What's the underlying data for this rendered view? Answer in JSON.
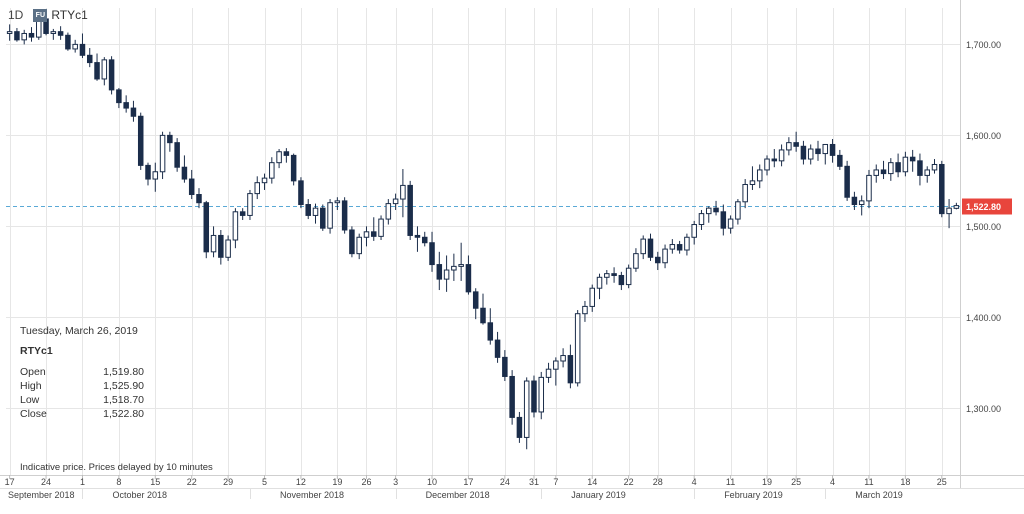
{
  "toolbar": {
    "period": "1D",
    "symbol_icon": "FU",
    "symbol": "RTYc1"
  },
  "info": {
    "date": "Tuesday, March 26, 2019",
    "symbol": "RTYc1",
    "rows": [
      {
        "label": "Open",
        "value": "1,519.80"
      },
      {
        "label": "High",
        "value": "1,525.90"
      },
      {
        "label": "Low",
        "value": "1,518.70"
      },
      {
        "label": "Close",
        "value": "1,522.80"
      }
    ]
  },
  "note": "Indicative price. Prices delayed by 10 minutes",
  "colors": {
    "down": "#1b2d4a",
    "up": "#ffffff",
    "up_border": "#1b2d4a",
    "last_price": "#e8453c",
    "price_line": "#5aa9d6",
    "grid": "#e6e6e6"
  },
  "chart_data": {
    "type": "candlestick",
    "ylim": [
      1230,
      1740
    ],
    "y_ticks": [
      {
        "value": 1700,
        "label": "1,700.00"
      },
      {
        "value": 1600,
        "label": "1,600.00"
      },
      {
        "value": 1500,
        "label": "1,500.00"
      },
      {
        "value": 1400,
        "label": "1,400.00"
      },
      {
        "value": 1300,
        "label": "1,300.00"
      }
    ],
    "last_price": {
      "value": 1522.8,
      "label": "1,522.80"
    },
    "x_day_ticks": [
      {
        "label": "17",
        "index": 0
      },
      {
        "label": "24",
        "index": 5
      },
      {
        "label": "1",
        "index": 10
      },
      {
        "label": "8",
        "index": 15
      },
      {
        "label": "15",
        "index": 20
      },
      {
        "label": "22",
        "index": 25
      },
      {
        "label": "29",
        "index": 30
      },
      {
        "label": "5",
        "index": 35
      },
      {
        "label": "12",
        "index": 40
      },
      {
        "label": "19",
        "index": 45
      },
      {
        "label": "26",
        "index": 49
      },
      {
        "label": "3",
        "index": 53
      },
      {
        "label": "10",
        "index": 58
      },
      {
        "label": "17",
        "index": 63
      },
      {
        "label": "24",
        "index": 68
      },
      {
        "label": "31",
        "index": 72
      },
      {
        "label": "7",
        "index": 75
      },
      {
        "label": "14",
        "index": 80
      },
      {
        "label": "22",
        "index": 85
      },
      {
        "label": "28",
        "index": 89
      },
      {
        "label": "4",
        "index": 94
      },
      {
        "label": "11",
        "index": 99
      },
      {
        "label": "19",
        "index": 104
      },
      {
        "label": "25",
        "index": 108
      },
      {
        "label": "4",
        "index": 113
      },
      {
        "label": "11",
        "index": 118
      },
      {
        "label": "18",
        "index": 123
      },
      {
        "label": "25",
        "index": 128
      }
    ],
    "x_month_ticks": [
      {
        "label": "September 2018",
        "index": 0
      },
      {
        "label": "October 2018",
        "index": 10
      },
      {
        "label": "November 2018",
        "index": 33
      },
      {
        "label": "December 2018",
        "index": 53
      },
      {
        "label": "January 2019",
        "index": 73
      },
      {
        "label": "February 2019",
        "index": 94
      },
      {
        "label": "March 2019",
        "index": 112
      }
    ],
    "candles": [
      [
        1712,
        1722,
        1704,
        1714
      ],
      [
        1714,
        1718,
        1703,
        1705
      ],
      [
        1705,
        1716,
        1700,
        1712
      ],
      [
        1712,
        1719,
        1703,
        1708
      ],
      [
        1708,
        1730,
        1705,
        1728
      ],
      [
        1728,
        1731,
        1710,
        1712
      ],
      [
        1712,
        1717,
        1705,
        1714
      ],
      [
        1714,
        1720,
        1705,
        1710
      ],
      [
        1710,
        1713,
        1693,
        1695
      ],
      [
        1695,
        1705,
        1691,
        1700
      ],
      [
        1700,
        1712,
        1685,
        1688
      ],
      [
        1688,
        1696,
        1675,
        1680
      ],
      [
        1680,
        1690,
        1660,
        1662
      ],
      [
        1662,
        1686,
        1655,
        1683
      ],
      [
        1683,
        1687,
        1645,
        1650
      ],
      [
        1650,
        1652,
        1630,
        1636
      ],
      [
        1636,
        1644,
        1625,
        1630
      ],
      [
        1630,
        1638,
        1615,
        1621
      ],
      [
        1621,
        1625,
        1562,
        1567
      ],
      [
        1567,
        1570,
        1545,
        1552
      ],
      [
        1552,
        1570,
        1538,
        1560
      ],
      [
        1560,
        1604,
        1552,
        1600
      ],
      [
        1600,
        1604,
        1582,
        1592
      ],
      [
        1592,
        1597,
        1560,
        1565
      ],
      [
        1565,
        1578,
        1548,
        1552
      ],
      [
        1552,
        1562,
        1530,
        1535
      ],
      [
        1535,
        1542,
        1520,
        1526
      ],
      [
        1526,
        1528,
        1465,
        1472
      ],
      [
        1472,
        1500,
        1466,
        1490
      ],
      [
        1490,
        1496,
        1458,
        1466
      ],
      [
        1466,
        1490,
        1462,
        1485
      ],
      [
        1485,
        1520,
        1476,
        1516
      ],
      [
        1516,
        1520,
        1507,
        1512
      ],
      [
        1512,
        1540,
        1507,
        1536
      ],
      [
        1536,
        1555,
        1530,
        1548
      ],
      [
        1548,
        1558,
        1540,
        1553
      ],
      [
        1553,
        1576,
        1547,
        1570
      ],
      [
        1570,
        1585,
        1564,
        1582
      ],
      [
        1582,
        1586,
        1570,
        1578
      ],
      [
        1578,
        1580,
        1545,
        1550
      ],
      [
        1550,
        1554,
        1520,
        1524
      ],
      [
        1524,
        1530,
        1508,
        1512
      ],
      [
        1512,
        1525,
        1503,
        1520
      ],
      [
        1520,
        1524,
        1495,
        1498
      ],
      [
        1498,
        1530,
        1492,
        1526
      ],
      [
        1526,
        1532,
        1518,
        1528
      ],
      [
        1528,
        1532,
        1492,
        1496
      ],
      [
        1496,
        1500,
        1466,
        1470
      ],
      [
        1470,
        1492,
        1464,
        1488
      ],
      [
        1488,
        1500,
        1478,
        1494
      ],
      [
        1494,
        1510,
        1484,
        1489
      ],
      [
        1489,
        1512,
        1485,
        1508
      ],
      [
        1508,
        1530,
        1502,
        1525
      ],
      [
        1525,
        1536,
        1518,
        1530
      ],
      [
        1530,
        1563,
        1510,
        1545
      ],
      [
        1545,
        1550,
        1485,
        1490
      ],
      [
        1490,
        1500,
        1472,
        1488
      ],
      [
        1488,
        1494,
        1478,
        1482
      ],
      [
        1482,
        1494,
        1450,
        1458
      ],
      [
        1458,
        1472,
        1430,
        1442
      ],
      [
        1442,
        1468,
        1428,
        1452
      ],
      [
        1452,
        1470,
        1440,
        1456
      ],
      [
        1456,
        1482,
        1440,
        1458
      ],
      [
        1458,
        1468,
        1425,
        1428
      ],
      [
        1428,
        1432,
        1398,
        1410
      ],
      [
        1410,
        1426,
        1392,
        1394
      ],
      [
        1394,
        1410,
        1370,
        1375
      ],
      [
        1375,
        1384,
        1350,
        1356
      ],
      [
        1356,
        1364,
        1330,
        1335
      ],
      [
        1335,
        1342,
        1282,
        1290
      ],
      [
        1290,
        1296,
        1262,
        1268
      ],
      [
        1268,
        1334,
        1255,
        1330
      ],
      [
        1330,
        1336,
        1290,
        1296
      ],
      [
        1296,
        1340,
        1288,
        1334
      ],
      [
        1334,
        1350,
        1328,
        1343
      ],
      [
        1343,
        1356,
        1325,
        1352
      ],
      [
        1352,
        1366,
        1345,
        1358
      ],
      [
        1358,
        1370,
        1322,
        1328
      ],
      [
        1328,
        1408,
        1324,
        1404
      ],
      [
        1404,
        1418,
        1395,
        1412
      ],
      [
        1412,
        1436,
        1406,
        1432
      ],
      [
        1432,
        1448,
        1420,
        1444
      ],
      [
        1444,
        1452,
        1436,
        1448
      ],
      [
        1448,
        1455,
        1438,
        1446
      ],
      [
        1446,
        1450,
        1430,
        1436
      ],
      [
        1436,
        1458,
        1432,
        1454
      ],
      [
        1454,
        1476,
        1450,
        1470
      ],
      [
        1470,
        1490,
        1464,
        1486
      ],
      [
        1486,
        1492,
        1462,
        1466
      ],
      [
        1466,
        1472,
        1452,
        1460
      ],
      [
        1460,
        1480,
        1454,
        1475
      ],
      [
        1475,
        1486,
        1470,
        1480
      ],
      [
        1480,
        1484,
        1470,
        1474
      ],
      [
        1474,
        1492,
        1468,
        1488
      ],
      [
        1488,
        1506,
        1480,
        1502
      ],
      [
        1502,
        1518,
        1496,
        1514
      ],
      [
        1514,
        1522,
        1504,
        1520
      ],
      [
        1520,
        1528,
        1512,
        1516
      ],
      [
        1516,
        1524,
        1490,
        1498
      ],
      [
        1498,
        1512,
        1492,
        1508
      ],
      [
        1508,
        1530,
        1502,
        1527
      ],
      [
        1527,
        1552,
        1520,
        1546
      ],
      [
        1546,
        1566,
        1540,
        1550
      ],
      [
        1550,
        1568,
        1542,
        1562
      ],
      [
        1562,
        1578,
        1556,
        1574
      ],
      [
        1574,
        1585,
        1565,
        1572
      ],
      [
        1572,
        1590,
        1566,
        1584
      ],
      [
        1584,
        1598,
        1578,
        1592
      ],
      [
        1592,
        1604,
        1582,
        1588
      ],
      [
        1588,
        1594,
        1568,
        1574
      ],
      [
        1574,
        1590,
        1568,
        1585
      ],
      [
        1585,
        1594,
        1572,
        1580
      ],
      [
        1580,
        1590,
        1568,
        1590
      ],
      [
        1590,
        1596,
        1570,
        1578
      ],
      [
        1578,
        1584,
        1562,
        1566
      ],
      [
        1566,
        1572,
        1528,
        1532
      ],
      [
        1532,
        1538,
        1518,
        1524
      ],
      [
        1524,
        1534,
        1512,
        1528
      ],
      [
        1528,
        1562,
        1520,
        1556
      ],
      [
        1556,
        1568,
        1548,
        1562
      ],
      [
        1562,
        1572,
        1552,
        1558
      ],
      [
        1558,
        1575,
        1550,
        1570
      ],
      [
        1570,
        1580,
        1554,
        1560
      ],
      [
        1560,
        1582,
        1555,
        1576
      ],
      [
        1576,
        1584,
        1560,
        1572
      ],
      [
        1572,
        1580,
        1545,
        1556
      ],
      [
        1556,
        1566,
        1548,
        1562
      ],
      [
        1562,
        1574,
        1558,
        1568
      ],
      [
        1568,
        1572,
        1510,
        1514
      ],
      [
        1514,
        1530,
        1498,
        1520
      ],
      [
        1519.8,
        1525.9,
        1518.7,
        1522.8
      ]
    ]
  }
}
